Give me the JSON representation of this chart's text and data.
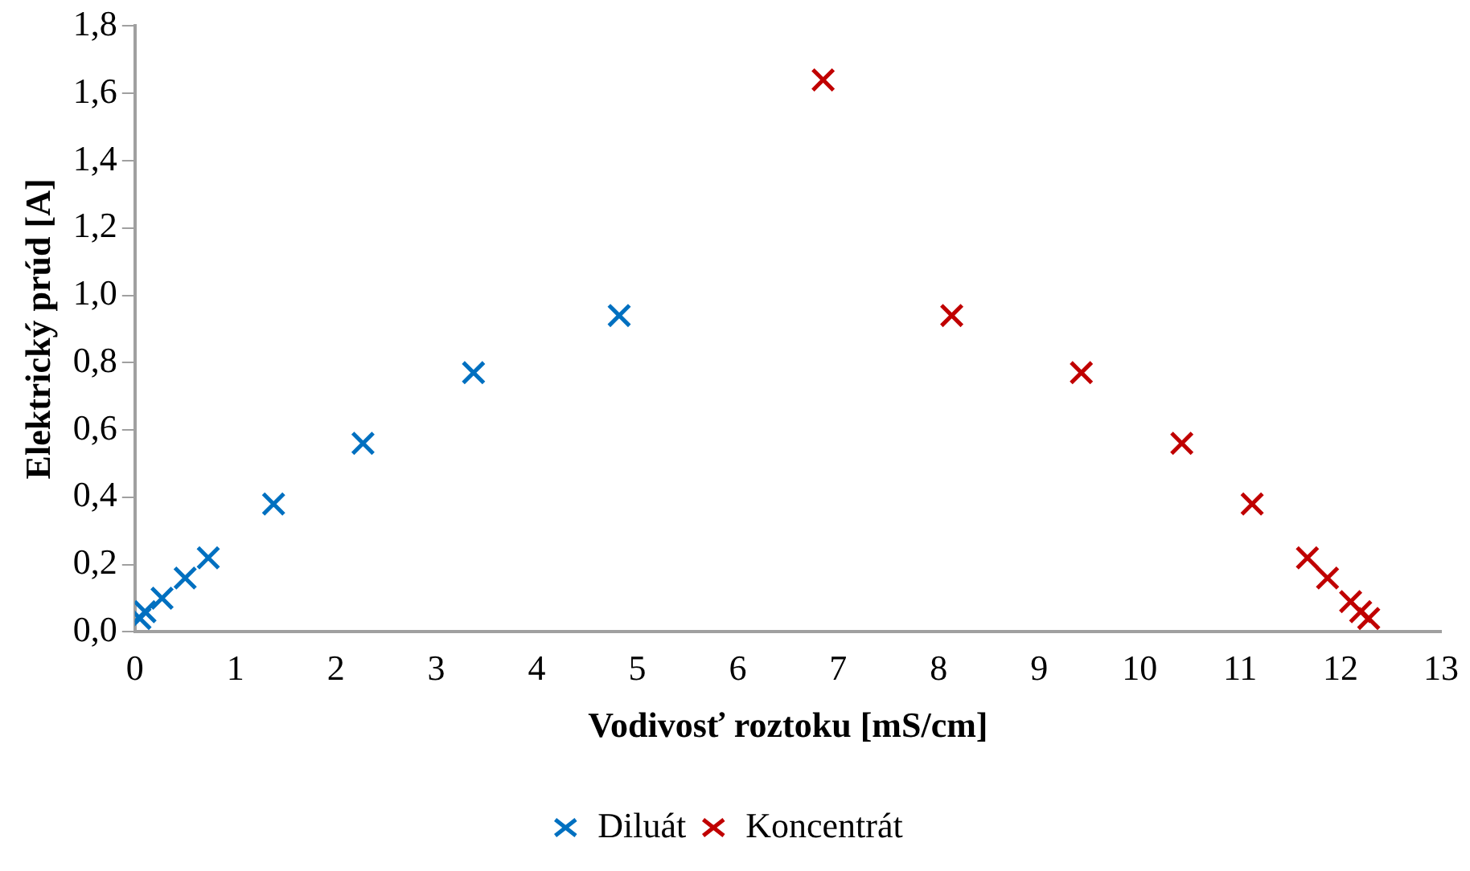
{
  "chart_data": {
    "type": "scatter",
    "xlabel": "Vodivosť roztoku [mS/cm]",
    "ylabel": "Elektrický prúd [A]",
    "xlim": [
      0,
      13
    ],
    "ylim": [
      0,
      1.8
    ],
    "xticks": [
      0,
      1,
      2,
      3,
      4,
      5,
      6,
      7,
      8,
      9,
      10,
      11,
      12,
      13
    ],
    "yticks": [
      {
        "value": 0,
        "label": "0,0"
      },
      {
        "value": 0.2,
        "label": "0,2"
      },
      {
        "value": 0.4,
        "label": "0,4"
      },
      {
        "value": 0.6,
        "label": "0,6"
      },
      {
        "value": 0.8,
        "label": "0,8"
      },
      {
        "value": 1.0,
        "label": "1,0"
      },
      {
        "value": 1.2,
        "label": "1,2"
      },
      {
        "value": 1.4,
        "label": "1,4"
      },
      {
        "value": 1.6,
        "label": "1,6"
      },
      {
        "value": 1.8,
        "label": "1,8"
      }
    ],
    "grid": false,
    "legend": "bottom",
    "marker": "cross",
    "series": [
      {
        "name": "Diluát",
        "color": "#0070c0",
        "x": [
          0.05,
          0.1,
          0.27,
          0.5,
          0.73,
          1.38,
          2.27,
          3.37,
          4.82
        ],
        "values": [
          0.04,
          0.06,
          0.1,
          0.16,
          0.22,
          0.38,
          0.56,
          0.77,
          0.94
        ]
      },
      {
        "name": "Koncentrát",
        "color": "#c00000",
        "x": [
          6.85,
          8.13,
          9.42,
          10.42,
          11.12,
          11.67,
          11.87,
          12.1,
          12.2,
          12.28
        ],
        "values": [
          1.64,
          0.94,
          0.77,
          0.56,
          0.38,
          0.22,
          0.16,
          0.09,
          0.06,
          0.04
        ]
      }
    ]
  }
}
